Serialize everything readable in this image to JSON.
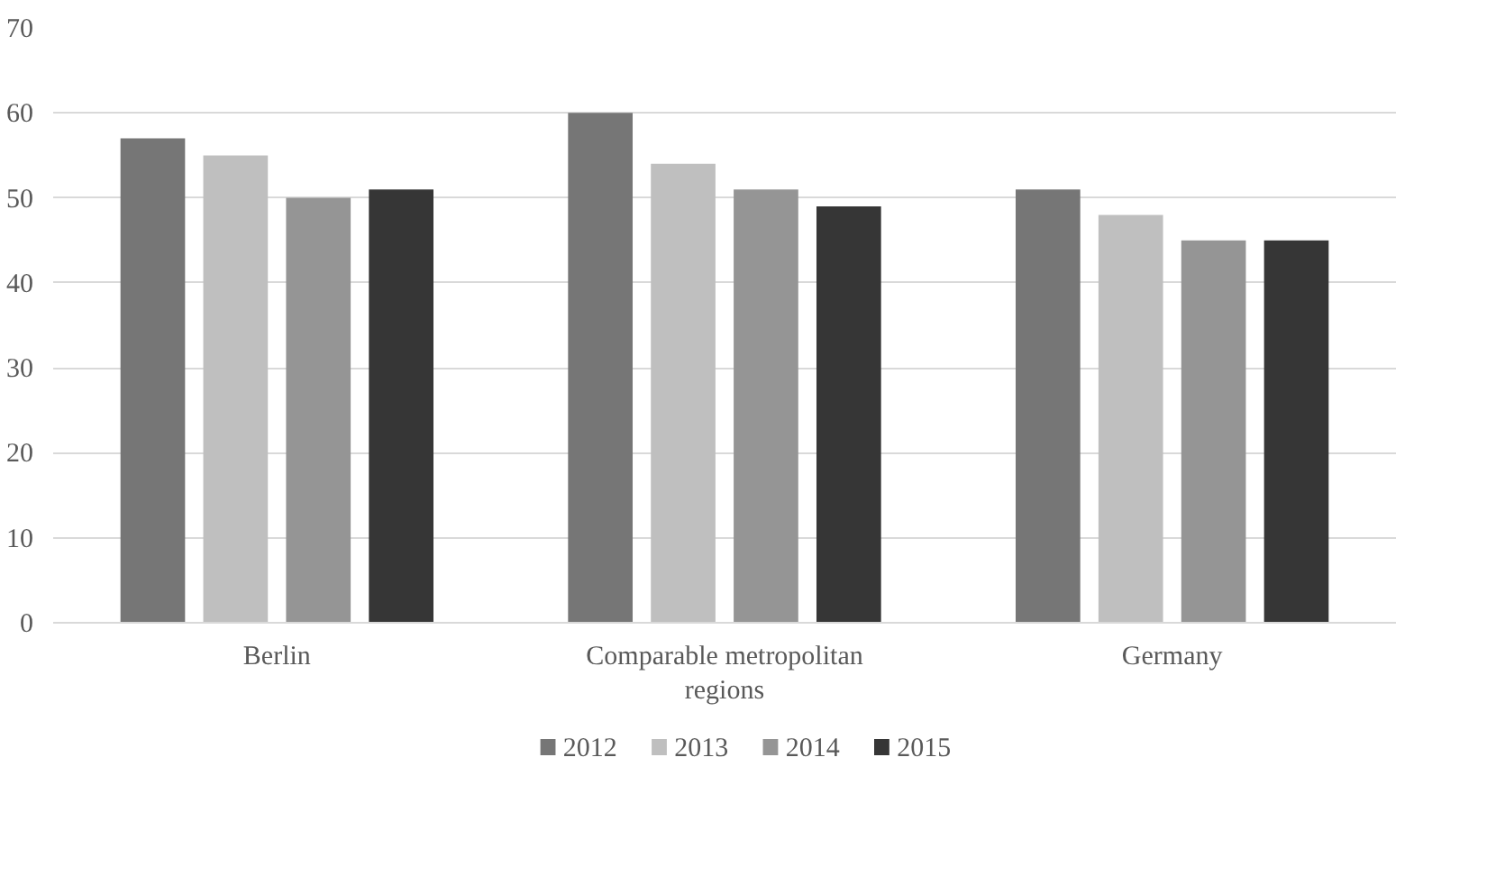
{
  "chart_data": {
    "type": "bar",
    "categories": [
      "Berlin",
      "Comparable metropolitan\nregions",
      "Germany"
    ],
    "series": [
      {
        "name": "2012",
        "color": "#767676",
        "values": [
          57,
          60,
          51
        ]
      },
      {
        "name": "2013",
        "color": "#bfbfbf",
        "values": [
          55,
          54,
          48
        ]
      },
      {
        "name": "2014",
        "color": "#959595",
        "values": [
          50,
          51,
          45
        ]
      },
      {
        "name": "2015",
        "color": "#363636",
        "values": [
          51,
          49,
          45
        ]
      }
    ],
    "ylim": [
      0,
      70
    ],
    "yticks": [
      0,
      10,
      20,
      30,
      40,
      50,
      60,
      70
    ],
    "grid": "y",
    "legend": "bottom"
  }
}
